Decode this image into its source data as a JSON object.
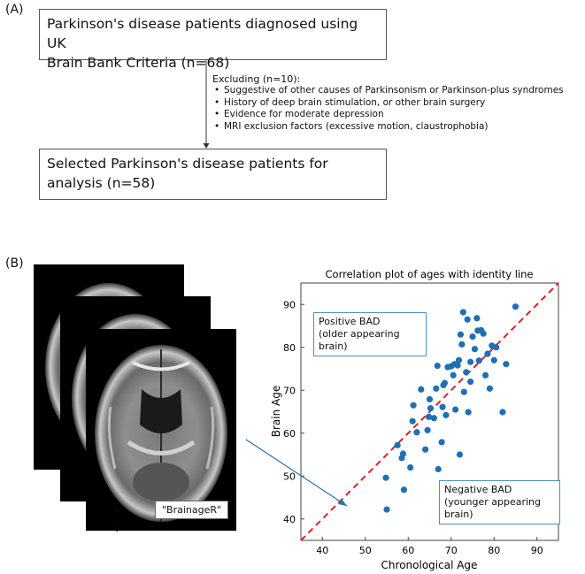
{
  "panel_a": {
    "label": "(A)",
    "top_box": "Parkinson's disease patients diagnosed using UK\nBrain Bank Criteria (n=68)",
    "exclusion_title": "Excluding (n=10):",
    "exclusions": [
      "Suggestive of other causes of Parkinsonism or Parkinson-plus syndromes",
      "History of deep brain stimulation, or other brain surgery",
      "Evidence for moderate depression",
      "MRI exclusion factors (excessive motion, claustrophobia)"
    ],
    "bottom_box": "Selected Parkinson's disease patients for\nanalysis (n=58)"
  },
  "panel_b": {
    "label": "(B)",
    "tool_label": "\"BrainageR\"",
    "dots": "·\n·\n·"
  },
  "chart_data": {
    "type": "scatter",
    "title": "Correlation plot of ages with identity line",
    "xlabel": "Chronological Age",
    "ylabel": "Brain Age",
    "xlim": [
      35,
      95
    ],
    "ylim": [
      35,
      95
    ],
    "xticks": [
      40,
      50,
      60,
      70,
      80,
      90
    ],
    "yticks": [
      40,
      50,
      60,
      70,
      80,
      90
    ],
    "point_color": "#1f6fb5",
    "identity_line_color": "#e02020",
    "annotations": [
      "Positive BAD\n(older appearing brain)",
      "Negative BAD\n(younger appearing brain)"
    ],
    "points": [
      [
        55.0,
        42.2
      ],
      [
        54.8,
        49.6
      ],
      [
        57.5,
        57.2
      ],
      [
        58.5,
        54.2
      ],
      [
        58.8,
        55.2
      ],
      [
        59.0,
        46.8
      ],
      [
        60.5,
        52.0
      ],
      [
        61.0,
        62.8
      ],
      [
        61.2,
        66.5
      ],
      [
        62.0,
        60.2
      ],
      [
        63.0,
        70.2
      ],
      [
        64.0,
        56.2
      ],
      [
        64.5,
        60.7
      ],
      [
        64.8,
        63.8
      ],
      [
        65.0,
        67.9
      ],
      [
        65.2,
        65.8
      ],
      [
        66.0,
        63.5
      ],
      [
        66.5,
        70.4
      ],
      [
        66.8,
        75.7
      ],
      [
        67.0,
        51.6
      ],
      [
        67.8,
        57.9
      ],
      [
        68.0,
        66.1
      ],
      [
        68.2,
        71.2
      ],
      [
        68.5,
        71.7
      ],
      [
        68.8,
        64.2
      ],
      [
        69.2,
        75.4
      ],
      [
        70.0,
        75.6
      ],
      [
        70.5,
        73.5
      ],
      [
        70.8,
        76.1
      ],
      [
        71.0,
        65.5
      ],
      [
        71.5,
        75.8
      ],
      [
        71.8,
        77.0
      ],
      [
        72.0,
        55.0
      ],
      [
        72.2,
        83.0
      ],
      [
        72.5,
        80.7
      ],
      [
        72.8,
        88.2
      ],
      [
        73.0,
        69.6
      ],
      [
        73.5,
        74.2
      ],
      [
        73.8,
        86.5
      ],
      [
        74.0,
        64.9
      ],
      [
        74.5,
        76.6
      ],
      [
        75.0,
        82.5
      ],
      [
        75.5,
        79.6
      ],
      [
        76.0,
        86.8
      ],
      [
        76.2,
        83.9
      ],
      [
        76.5,
        76.9
      ],
      [
        77.0,
        84.0
      ],
      [
        77.5,
        83.2
      ],
      [
        78.0,
        73.5
      ],
      [
        78.5,
        78.5
      ],
      [
        79.0,
        70.4
      ],
      [
        79.5,
        80.4
      ],
      [
        80.0,
        77.0
      ],
      [
        80.5,
        80.0
      ],
      [
        82.0,
        64.9
      ],
      [
        82.8,
        76.1
      ],
      [
        85.0,
        89.5
      ],
      [
        74.5,
        72.0
      ]
    ]
  }
}
